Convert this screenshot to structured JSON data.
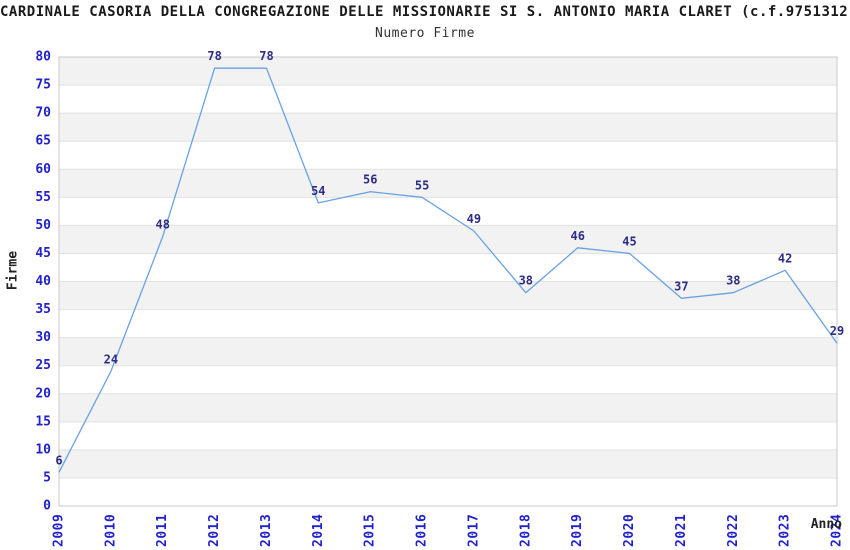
{
  "header": {
    "title": "CARDINALE CASORIA DELLA CONGREGAZIONE DELLE MISSIONARIE SI S. ANTONIO MARIA CLARET (c.f.9751312",
    "subtitle": "Numero Firme"
  },
  "chart_data": {
    "type": "line",
    "title": "Numero Firme",
    "categories": [
      "2009",
      "2010",
      "2011",
      "2012",
      "2013",
      "2014",
      "2015",
      "2016",
      "2017",
      "2018",
      "2019",
      "2020",
      "2021",
      "2022",
      "2023",
      "2024"
    ],
    "values": [
      6,
      24,
      48,
      78,
      78,
      54,
      56,
      55,
      49,
      38,
      46,
      45,
      37,
      38,
      42,
      29
    ],
    "xlabel": "Anno",
    "ylabel": "Firme",
    "ylim": [
      0,
      80
    ],
    "ytick_step": 5,
    "grid": true,
    "legend": "none",
    "band_fill": "alternating 5-unit horizontal bands",
    "colors": {
      "line": "#69a1e3",
      "data_label": "#2d2d86",
      "tick_label": "#2121cd",
      "band": "#f2f2f2",
      "grid": "#e2e2e2",
      "border": "#c9c9c9",
      "axis_title": "#222222",
      "title_text": "#1a1a1a",
      "background": "#ffffff"
    }
  }
}
